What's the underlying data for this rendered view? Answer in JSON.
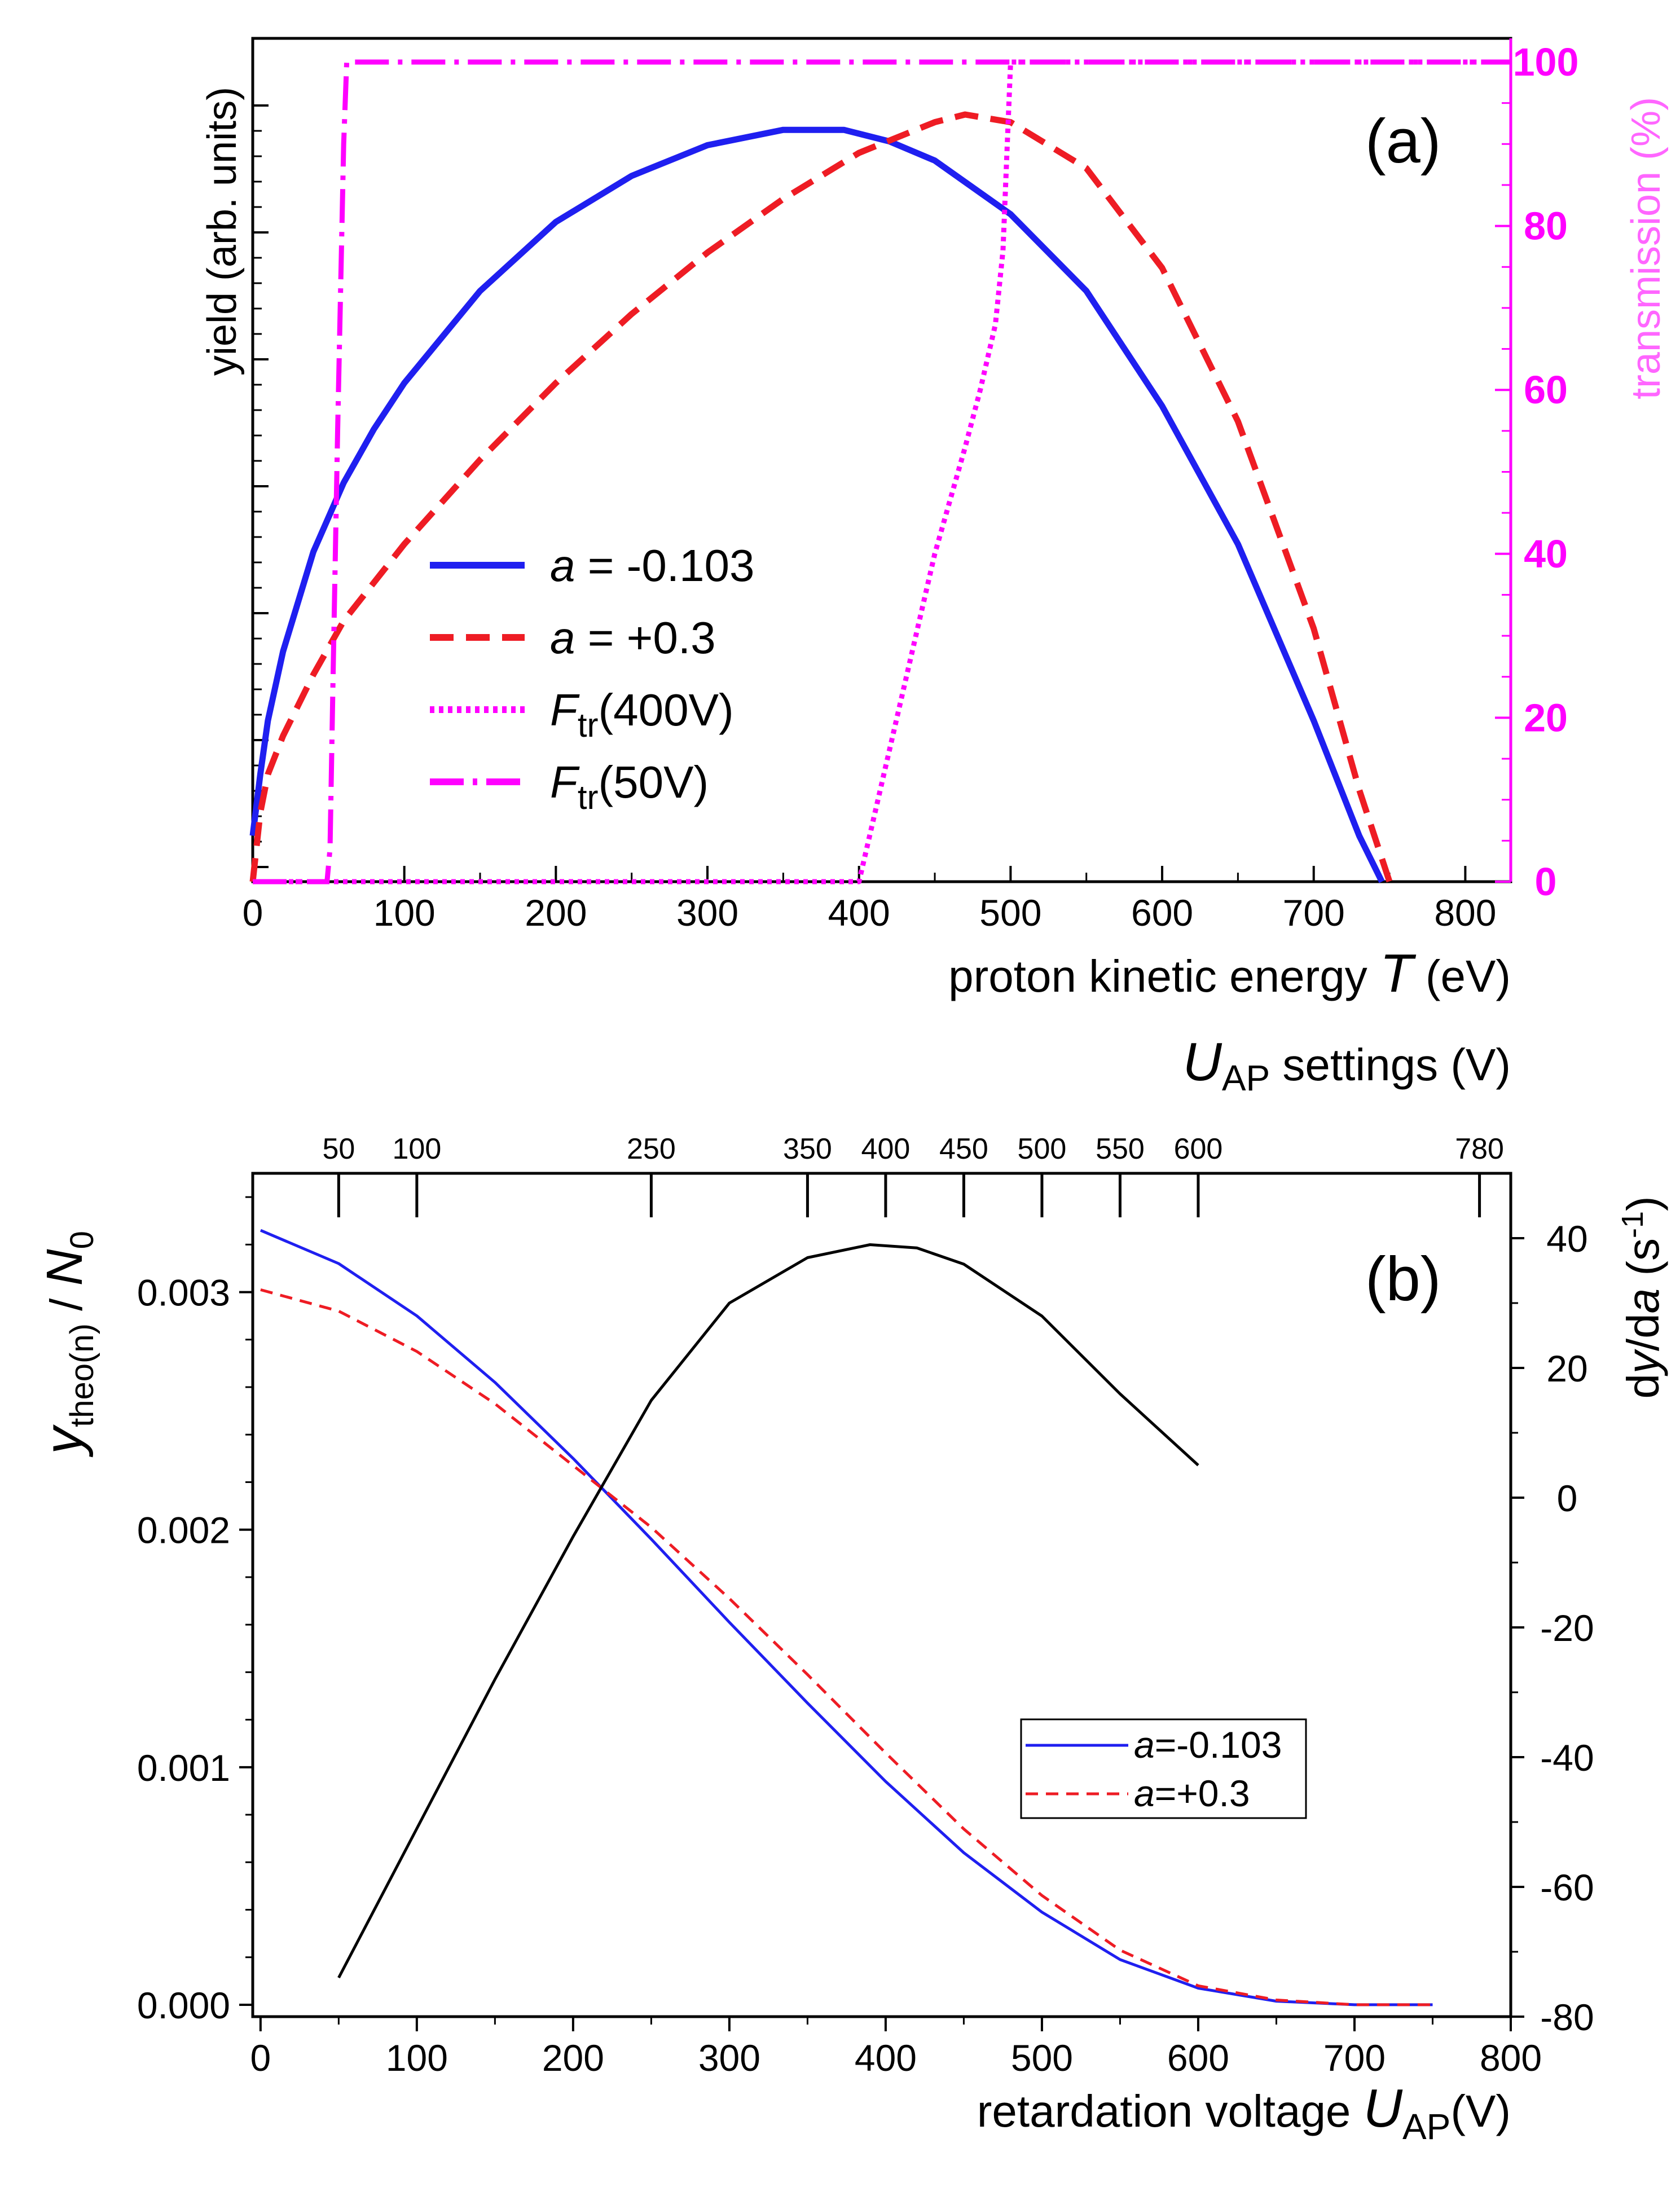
{
  "chart_data": [
    {
      "type": "line",
      "panel_label": "(a)",
      "xlabel_main": "proton kinetic energy ",
      "xlabel_var": "T",
      "xlabel_unit": " (eV)",
      "ylabel_left": "yield (arb. units)",
      "ylabel_right": "transmission (%)",
      "xlim": [
        0,
        830
      ],
      "ylim_right": [
        0,
        100
      ],
      "xticks": [
        0,
        100,
        200,
        300,
        400,
        500,
        600,
        700,
        800
      ],
      "yticks_right": [
        0,
        20,
        40,
        60,
        80,
        100
      ],
      "legend": [
        {
          "symbol": "a",
          "text": " = -0.103",
          "style": "solid-blue"
        },
        {
          "symbol": "a",
          "text": " = +0.3",
          "style": "dashed-red"
        },
        {
          "symbol": "F",
          "sub": "tr",
          "text": "(400V)",
          "style": "dotted-magenta"
        },
        {
          "symbol": "F",
          "sub": "tr",
          "text": "(50V)",
          "style": "dashdot-magenta"
        }
      ],
      "series": [
        {
          "name": "a = -0.103",
          "color": "#1f1ff0",
          "x": [
            0,
            5,
            10,
            20,
            40,
            60,
            80,
            100,
            150,
            200,
            250,
            300,
            350,
            390,
            420,
            450,
            500,
            550,
            600,
            650,
            700,
            730,
            745
          ],
          "y": [
            0.06,
            0.14,
            0.21,
            0.3,
            0.43,
            0.52,
            0.59,
            0.65,
            0.77,
            0.86,
            0.92,
            0.96,
            0.98,
            0.98,
            0.965,
            0.94,
            0.87,
            0.77,
            0.62,
            0.44,
            0.21,
            0.06,
            0.0
          ]
        },
        {
          "name": "a = +0.3",
          "color": "#ee1c24",
          "x": [
            0,
            5,
            10,
            20,
            40,
            60,
            80,
            100,
            150,
            200,
            250,
            300,
            350,
            400,
            450,
            470,
            500,
            550,
            600,
            650,
            700,
            730,
            750
          ],
          "y": [
            0.0,
            0.09,
            0.14,
            0.19,
            0.27,
            0.34,
            0.39,
            0.44,
            0.55,
            0.65,
            0.74,
            0.82,
            0.89,
            0.95,
            0.99,
            1.0,
            0.99,
            0.93,
            0.8,
            0.6,
            0.33,
            0.12,
            0.0
          ]
        },
        {
          "name": "Ftr(400V)",
          "color": "#ff00ff",
          "x": [
            0,
            400,
            410,
            430,
            450,
            470,
            480,
            490,
            495,
            500,
            830
          ],
          "y": [
            0,
            0,
            8,
            24,
            40,
            53,
            60,
            68,
            77,
            100,
            100
          ]
        },
        {
          "name": "Ftr(50V)",
          "color": "#ff00ff",
          "x": [
            0,
            49,
            51,
            53,
            56,
            60,
            62,
            830
          ],
          "y": [
            0,
            0,
            4,
            25,
            55,
            90,
            100,
            100
          ]
        }
      ]
    },
    {
      "type": "line",
      "panel_label": "(b)",
      "xlabel_main": "retardation voltage ",
      "xlabel_var": "U",
      "xlabel_sub": "AP",
      "xlabel_unit": "(V)",
      "ylabel_left_var": "y",
      "ylabel_left_sub": "theo(n)",
      "ylabel_left_rest": " / ",
      "ylabel_left_var2": "N",
      "ylabel_left_sub2": "0",
      "ylabel_right_pre": "d",
      "ylabel_right_var": "y",
      "ylabel_right_mid": "/d",
      "ylabel_right_var2": "a",
      "ylabel_right_unit": " (s",
      "ylabel_right_sup": "-1",
      "ylabel_right_close": ")",
      "top_axis_var": "U",
      "top_axis_sub": "AP",
      "top_axis_rest": " settings (V)",
      "top_ticks": [
        50,
        100,
        250,
        350,
        400,
        450,
        500,
        550,
        600,
        780
      ],
      "xlim": [
        -5,
        800
      ],
      "ylim_left": [
        -5e-05,
        0.0035
      ],
      "ylim_right": [
        -80,
        50
      ],
      "xticks": [
        0,
        100,
        200,
        300,
        400,
        500,
        600,
        700,
        800
      ],
      "yticks_left": [
        "0.000",
        "0.001",
        "0.002",
        "0.003"
      ],
      "yticks_left_values": [
        0,
        0.001,
        0.002,
        0.003
      ],
      "yticks_right": [
        -80,
        -60,
        -40,
        -20,
        0,
        20,
        40
      ],
      "legend": [
        {
          "symbol": "a",
          "text": "=-0.103",
          "style": "solid-blue"
        },
        {
          "symbol": "a",
          "text": "=+0.3",
          "style": "dashed-red"
        }
      ],
      "series": [
        {
          "name": "a=-0.103",
          "axis": "left",
          "color": "#1f1ff0",
          "x": [
            0,
            50,
            100,
            150,
            200,
            250,
            300,
            350,
            400,
            450,
            500,
            550,
            600,
            650,
            700,
            750
          ],
          "y": [
            0.00326,
            0.00312,
            0.0029,
            0.00262,
            0.0023,
            0.00196,
            0.00161,
            0.00127,
            0.00094,
            0.00064,
            0.00039,
            0.00019,
            7e-05,
            1.5e-05,
            0.0,
            0.0
          ]
        },
        {
          "name": "a=+0.3",
          "axis": "left",
          "color": "#ee1c24",
          "x": [
            0,
            50,
            100,
            150,
            200,
            250,
            300,
            350,
            400,
            450,
            500,
            550,
            600,
            650,
            700,
            750
          ],
          "y": [
            0.00301,
            0.00292,
            0.00275,
            0.00253,
            0.00227,
            0.00201,
            0.00171,
            0.00139,
            0.00106,
            0.00074,
            0.00046,
            0.00023,
            8e-05,
            2e-05,
            0.0,
            0.0
          ]
        },
        {
          "name": "dy/da",
          "axis": "right",
          "color": "#000000",
          "x": [
            50,
            100,
            150,
            200,
            250,
            300,
            350,
            390,
            420,
            450,
            500,
            550,
            600
          ],
          "y": [
            -74,
            -51,
            -28,
            -6,
            15,
            30,
            37,
            39,
            38.5,
            36,
            28,
            16,
            5
          ]
        }
      ]
    }
  ]
}
